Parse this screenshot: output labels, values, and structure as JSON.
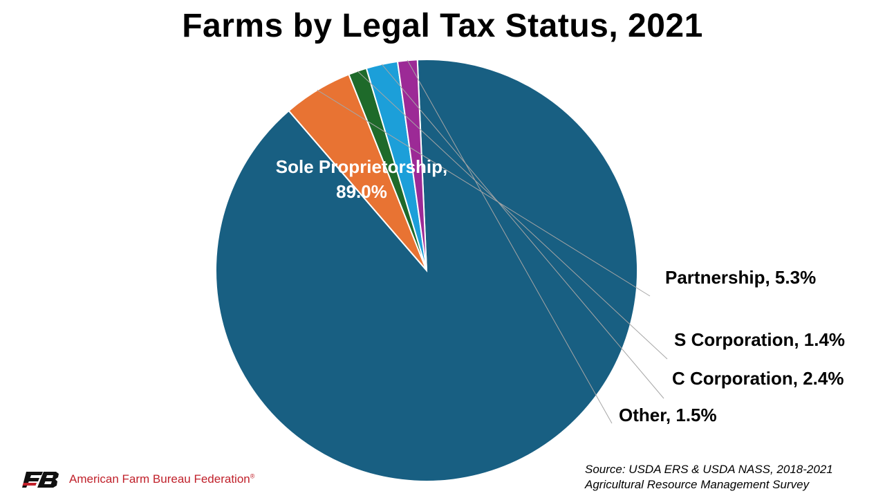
{
  "title": "Farms by Legal Tax Status, 2021",
  "chart_data": {
    "type": "pie",
    "title": "Farms by Legal Tax Status, 2021",
    "unit": "%",
    "slices": [
      {
        "label": "Sole Proprietorship",
        "value": 89.0,
        "display": "Sole Proprietorship,",
        "display_value": "89.0%",
        "color": "#185f82"
      },
      {
        "label": "Partnership",
        "value": 5.3,
        "display": "Partnership, 5.3%",
        "color": "#e87333"
      },
      {
        "label": "S Corporation",
        "value": 1.4,
        "display": "S Corporation, 1.4%",
        "color": "#1e6a2a"
      },
      {
        "label": "C Corporation",
        "value": 2.4,
        "display": "C Corporation, 2.4%",
        "color": "#1c9fd9"
      },
      {
        "label": "Other",
        "value": 1.5,
        "display": "Other, 1.5%",
        "color": "#9c2a96"
      }
    ]
  },
  "footer": {
    "organization": "American Farm Bureau Federation",
    "registered_mark": "®",
    "source_line1": "Source: USDA ERS & USDA NASS, 2018-2021",
    "source_line2": "Agricultural Resource Management Survey"
  },
  "colors": {
    "brand_red": "#c0202a",
    "logo_black": "#111111"
  }
}
